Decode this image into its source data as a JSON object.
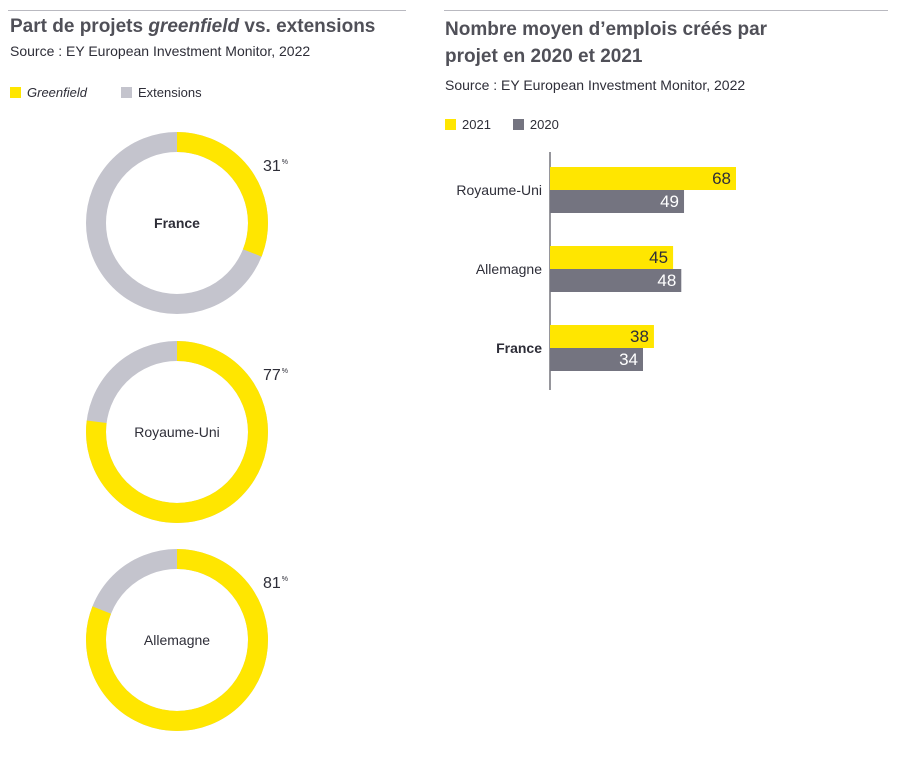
{
  "colors": {
    "greenfield": "#ffe600",
    "extensions": "#c4c4cd",
    "y2021": "#ffe600",
    "y2020": "#747480",
    "text": "#2e2e38",
    "title": "#505058"
  },
  "left": {
    "title_part1": "Part de projets ",
    "title_italic": "greenfield",
    "title_part2": " vs. extensions",
    "source": "Source : EY European Investment Monitor, 2022",
    "legend": [
      {
        "label": "Greenfield"
      },
      {
        "label": "Extensions"
      }
    ]
  },
  "right": {
    "title_line1": "Nombre moyen d’emplois créés par",
    "title_line2": "projet en 2020 et 2021",
    "source": "Source : EY European Investment Monitor, 2022",
    "legend": [
      {
        "label": "2021"
      },
      {
        "label": "2020"
      }
    ]
  },
  "chart_data": [
    {
      "type": "pie",
      "subtype": "donut",
      "series": [
        "Greenfield",
        "Extensions"
      ],
      "units": "%",
      "donuts": [
        {
          "label": "France",
          "bold": true,
          "greenfield": 31,
          "extensions": 69,
          "value_label": "31"
        },
        {
          "label": "Royaume-Uni",
          "bold": false,
          "greenfield": 77,
          "extensions": 23,
          "value_label": "77"
        },
        {
          "label": "Allemagne",
          "bold": false,
          "greenfield": 81,
          "extensions": 19,
          "value_label": "81"
        }
      ],
      "percent_sign": "%"
    },
    {
      "type": "bar",
      "orientation": "horizontal",
      "categories": [
        "Royaume-Uni",
        "Allemagne",
        "France"
      ],
      "bold_category": "France",
      "series": [
        {
          "name": "2021",
          "values": [
            68,
            45,
            38
          ]
        },
        {
          "name": "2020",
          "values": [
            49,
            48,
            34
          ]
        }
      ],
      "xlim": [
        0,
        70
      ]
    }
  ]
}
